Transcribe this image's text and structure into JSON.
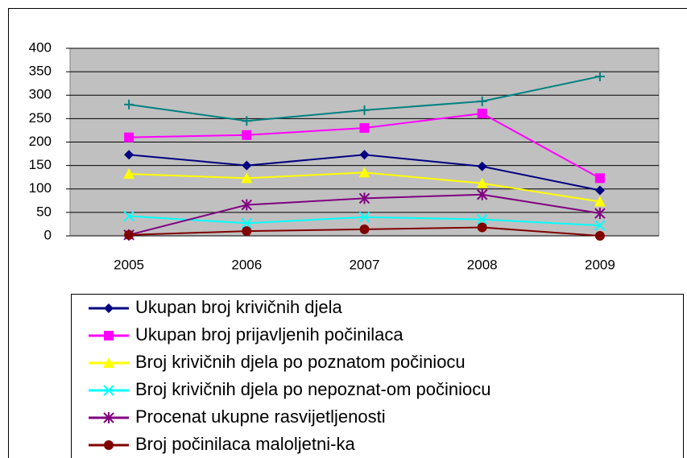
{
  "chart_data": {
    "type": "line",
    "categories": [
      "2005",
      "2006",
      "2007",
      "2008",
      "2009"
    ],
    "series": [
      {
        "name": "Ukupan broj krivičnih djela",
        "color": "#000080",
        "marker": "diamond",
        "values": [
          173,
          150,
          173,
          148,
          97
        ]
      },
      {
        "name": "Ukupan broj prijavljenih počinilaca",
        "color": "#ff00ff",
        "marker": "square",
        "values": [
          210,
          215,
          230,
          261,
          123
        ]
      },
      {
        "name": "Broj krivičnih djela po poznatom počiniocu",
        "color": "#ffff00",
        "marker": "triangle",
        "values": [
          132,
          123,
          135,
          112,
          73
        ]
      },
      {
        "name": "Broj krivičnih djela po nepoznat-om počiniocu",
        "color": "#00ffff",
        "marker": "x",
        "values": [
          42,
          27,
          40,
          35,
          22
        ]
      },
      {
        "name": "Procenat ukupne rasvijetljenosti",
        "color": "#800080",
        "marker": "star",
        "values": [
          2,
          66,
          80,
          88,
          48
        ]
      },
      {
        "name": "Broj počinilaca maloljetni-ka",
        "color": "#800000",
        "marker": "circle",
        "values": [
          2,
          10,
          14,
          18,
          0
        ]
      },
      {
        "color": "#008080",
        "marker": "plus",
        "values": [
          280,
          245,
          268,
          287,
          340
        ]
      }
    ],
    "ylim": [
      0,
      400
    ],
    "yticks": [
      0,
      50,
      100,
      150,
      200,
      250,
      300,
      350,
      400
    ],
    "grid": true,
    "legend": "bottom"
  }
}
